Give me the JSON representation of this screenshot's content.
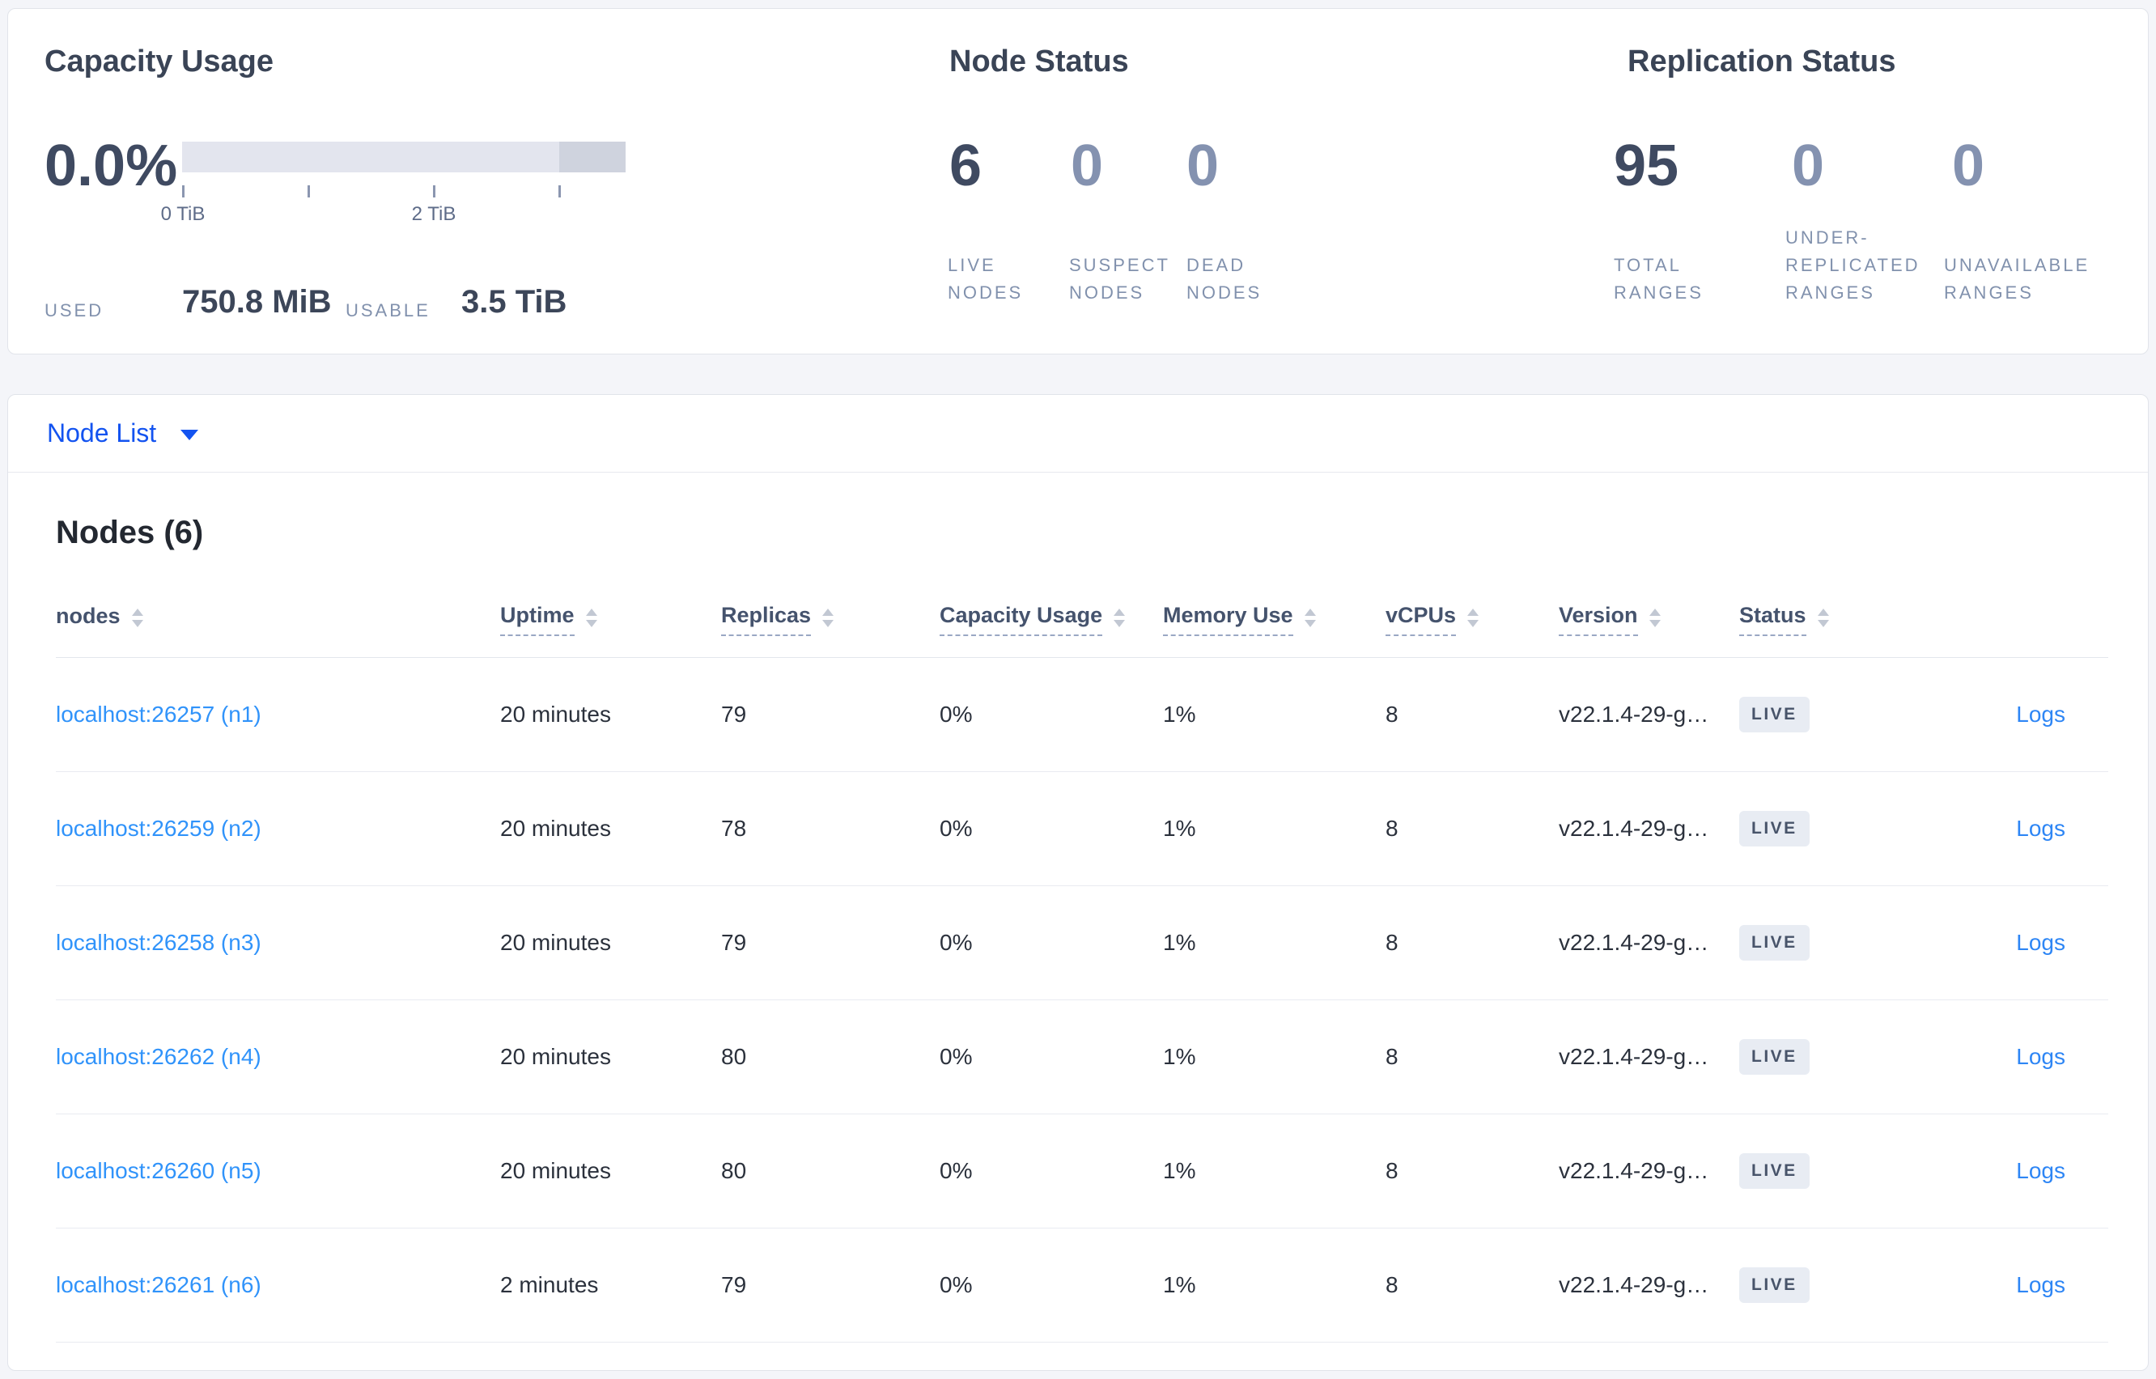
{
  "summary": {
    "capacity": {
      "title": "Capacity Usage",
      "percent": "0.0%",
      "axis_ticks": [
        "0 TiB",
        "2 TiB"
      ],
      "used_label": "USED",
      "used_value": "750.8 MiB",
      "usable_label": "USABLE",
      "usable_value": "3.5 TiB"
    },
    "node_status": {
      "title": "Node Status",
      "stats": [
        {
          "value": "6",
          "label": "LIVE NODES"
        },
        {
          "value": "0",
          "label": "SUSPECT NODES"
        },
        {
          "value": "0",
          "label": "DEAD NODES"
        }
      ]
    },
    "replication": {
      "title": "Replication Status",
      "stats": [
        {
          "value": "95",
          "label": "TOTAL RANGES"
        },
        {
          "value": "0",
          "label": "UNDER-REPLICATED RANGES"
        },
        {
          "value": "0",
          "label": "UNAVAILABLE RANGES"
        }
      ]
    }
  },
  "node_list": {
    "dropdown_label": "Node List",
    "heading": "Nodes (6)",
    "columns": [
      "nodes",
      "Uptime",
      "Replicas",
      "Capacity Usage",
      "Memory Use",
      "vCPUs",
      "Version",
      "Status"
    ],
    "rows": [
      {
        "node": "localhost:26257 (n1)",
        "uptime": "20 minutes",
        "replicas": "79",
        "capacity": "0%",
        "memory": "1%",
        "vcpus": "8",
        "version": "v22.1.4-29-g…",
        "status": "LIVE",
        "logs": "Logs"
      },
      {
        "node": "localhost:26259 (n2)",
        "uptime": "20 minutes",
        "replicas": "78",
        "capacity": "0%",
        "memory": "1%",
        "vcpus": "8",
        "version": "v22.1.4-29-g…",
        "status": "LIVE",
        "logs": "Logs"
      },
      {
        "node": "localhost:26258 (n3)",
        "uptime": "20 minutes",
        "replicas": "79",
        "capacity": "0%",
        "memory": "1%",
        "vcpus": "8",
        "version": "v22.1.4-29-g…",
        "status": "LIVE",
        "logs": "Logs"
      },
      {
        "node": "localhost:26262 (n4)",
        "uptime": "20 minutes",
        "replicas": "80",
        "capacity": "0%",
        "memory": "1%",
        "vcpus": "8",
        "version": "v22.1.4-29-g…",
        "status": "LIVE",
        "logs": "Logs"
      },
      {
        "node": "localhost:26260 (n5)",
        "uptime": "20 minutes",
        "replicas": "80",
        "capacity": "0%",
        "memory": "1%",
        "vcpus": "8",
        "version": "v22.1.4-29-g…",
        "status": "LIVE",
        "logs": "Logs"
      },
      {
        "node": "localhost:26261 (n6)",
        "uptime": "2 minutes",
        "replicas": "79",
        "capacity": "0%",
        "memory": "1%",
        "vcpus": "8",
        "version": "v22.1.4-29-g…",
        "status": "LIVE",
        "logs": "Logs"
      }
    ]
  },
  "colors": {
    "page_bg": "#f4f5f9",
    "card_bg": "#ffffff",
    "primary_link_blue": "#1353f0",
    "node_link_blue": "#3093fa",
    "dark_text": "#3c4659",
    "muted_label": "#8191ad",
    "muted_stat": "#8492b0",
    "badge_bg": "#e8ecf3",
    "bar_track": "#e3e5ee",
    "bar_dark_segment": "#cfd3de"
  }
}
